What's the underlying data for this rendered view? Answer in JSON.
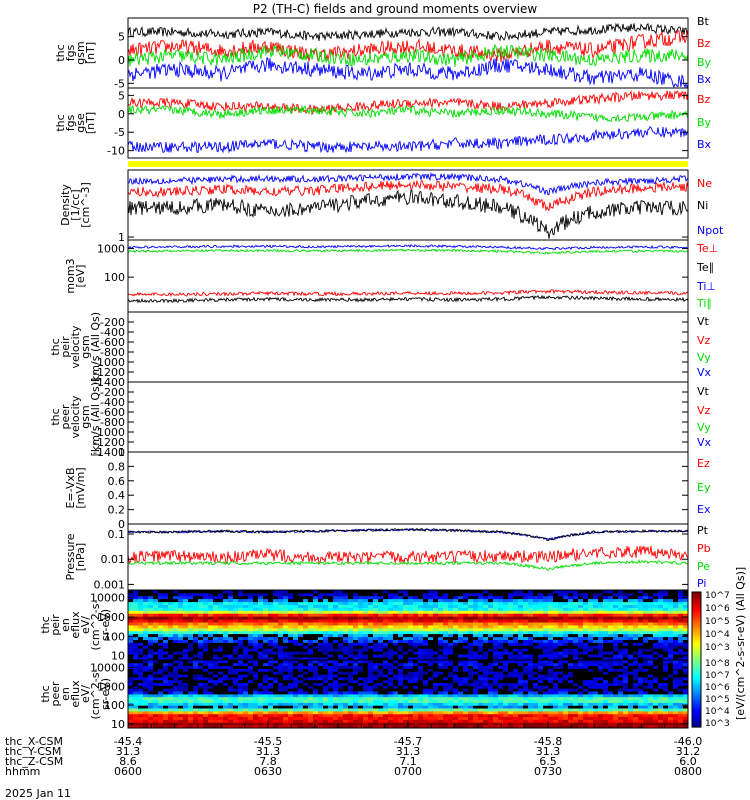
{
  "title": "P2 (TH-C) fields and ground moments overview",
  "date_label": "2025 Jan 11",
  "colors": {
    "black": "#000000",
    "red": "#ff0000",
    "green": "#00dd00",
    "blue": "#0000ff",
    "yellow": "#ffff00"
  },
  "chart_data": [
    {
      "type": "line",
      "id": "fgs_gsm",
      "ylabel": [
        "thc",
        "fgs",
        "gsm",
        "[nT]"
      ],
      "ylim": [
        -6,
        9
      ],
      "yticks": [
        -5,
        0,
        5
      ],
      "legend": [
        {
          "name": "Bt",
          "color": "black"
        },
        {
          "name": "Bz",
          "color": "red"
        },
        {
          "name": "By",
          "color": "green"
        },
        {
          "name": "Bx",
          "color": "blue"
        }
      ],
      "series": [
        {
          "name": "Bt",
          "color": "black",
          "base": [
            6,
            6,
            5.5,
            6,
            5,
            5.5,
            6,
            6,
            5,
            6,
            6.5,
            7,
            6
          ],
          "noise": 1
        },
        {
          "name": "Bz",
          "color": "red",
          "base": [
            2,
            3,
            2,
            3,
            1,
            2,
            3,
            2,
            1,
            3,
            2,
            4,
            5
          ],
          "noise": 1.6
        },
        {
          "name": "By",
          "color": "green",
          "base": [
            0,
            1,
            0,
            2,
            1,
            0,
            1,
            0,
            2,
            1,
            0,
            1,
            1
          ],
          "noise": 1.5
        },
        {
          "name": "Bx",
          "color": "blue",
          "base": [
            -3,
            -2,
            -3,
            -1,
            -2,
            -3,
            -2,
            -3,
            -1,
            -2,
            -4,
            -3,
            -5
          ],
          "noise": 1.6
        }
      ]
    },
    {
      "type": "line",
      "id": "fgs_gse",
      "ylabel": [
        "thc",
        "fgs",
        "gse",
        "[nT]"
      ],
      "ylim": [
        -12,
        7
      ],
      "yticks": [
        -10,
        -5,
        0,
        5
      ],
      "legend": [
        {
          "name": "Bz",
          "color": "red"
        },
        {
          "name": "By",
          "color": "green"
        },
        {
          "name": "Bx",
          "color": "blue"
        }
      ],
      "series": [
        {
          "name": "Bz",
          "color": "red",
          "base": [
            3,
            3,
            2,
            2,
            1,
            2,
            3,
            3,
            2,
            3,
            4,
            5,
            5
          ],
          "noise": 1.3
        },
        {
          "name": "By",
          "color": "green",
          "base": [
            1,
            1,
            0,
            1,
            1,
            0,
            1,
            0,
            1,
            0,
            -1,
            -1,
            0
          ],
          "noise": 1.2
        },
        {
          "name": "Bx",
          "color": "blue",
          "base": [
            -9,
            -9,
            -9,
            -8,
            -9,
            -9,
            -9,
            -8,
            -8,
            -7,
            -6,
            -5,
            -5
          ],
          "noise": 1.5
        }
      ]
    },
    {
      "type": "line",
      "id": "density",
      "ylabel": [
        "Density",
        "[1/cc]",
        "[cm^-3]"
      ],
      "ylim": [
        0.85,
        40
      ],
      "log": true,
      "yticks": [
        1
      ],
      "legend": [
        {
          "name": "Ne",
          "color": "red"
        },
        {
          "name": "Ni",
          "color": "black"
        },
        {
          "name": "Npot",
          "color": "blue"
        }
      ],
      "series": [
        {
          "name": "Npot",
          "color": "blue",
          "base": [
            22,
            22,
            24,
            25,
            24,
            26,
            28,
            27,
            24,
            12,
            20,
            22,
            25
          ],
          "noise": 0.08
        },
        {
          "name": "Ne",
          "color": "red",
          "base": [
            12,
            12,
            14,
            12,
            13,
            16,
            18,
            16,
            14,
            5,
            12,
            15,
            16
          ],
          "noise": 0.12
        },
        {
          "name": "Ni",
          "color": "black",
          "base": [
            5,
            5,
            6,
            4,
            5,
            7,
            9,
            7,
            5,
            1.2,
            4,
            5,
            5
          ],
          "noise": 0.18
        }
      ]
    },
    {
      "type": "line",
      "id": "temp",
      "ylabel": [
        "mom3",
        "[eV]"
      ],
      "ylim": [
        6,
        2000
      ],
      "log": true,
      "yticks": [
        100,
        1000
      ],
      "legend": [
        {
          "name": "Te⊥",
          "color": "red"
        },
        {
          "name": "Te∥",
          "color": "black"
        },
        {
          "name": "Ti⊥",
          "color": "blue"
        },
        {
          "name": "Ti∥",
          "color": "green"
        }
      ],
      "series": [
        {
          "name": "Ti⊥",
          "color": "blue",
          "base": [
            1100,
            1150,
            1200,
            1200,
            1150,
            1200,
            1250,
            1200,
            1100,
            1000,
            1100,
            1150,
            1100
          ],
          "noise": 0.04
        },
        {
          "name": "Ti∥",
          "color": "green",
          "base": [
            800,
            820,
            850,
            850,
            830,
            860,
            880,
            860,
            800,
            700,
            800,
            820,
            800
          ],
          "noise": 0.04
        },
        {
          "name": "Te⊥",
          "color": "red",
          "base": [
            25,
            25,
            26,
            27,
            26,
            26,
            28,
            27,
            28,
            32,
            30,
            28,
            27
          ],
          "noise": 0.06
        },
        {
          "name": "Te∥",
          "color": "black",
          "base": [
            15,
            15,
            16,
            17,
            16,
            16,
            17,
            16,
            17,
            20,
            18,
            17,
            16
          ],
          "noise": 0.06
        }
      ]
    },
    {
      "type": "line",
      "id": "peir_vel",
      "ylabel": [
        "thc",
        "peir",
        "velocity",
        "gsm",
        "km/s (All Qs)"
      ],
      "ylim": [
        -1400,
        0
      ],
      "yticks": [
        -200,
        -400,
        -600,
        -800,
        -1000,
        -1200,
        -1400
      ],
      "legend": [
        {
          "name": "Vt",
          "color": "black"
        },
        {
          "name": "Vz",
          "color": "red"
        },
        {
          "name": "Vy",
          "color": "green"
        },
        {
          "name": "Vx",
          "color": "blue"
        }
      ],
      "series": []
    },
    {
      "type": "line",
      "id": "peer_vel",
      "ylabel": [
        "thc",
        "peer",
        "velocity",
        "gsm",
        "[km/s (All Qs)]"
      ],
      "ylim": [
        -1400,
        0
      ],
      "yticks": [
        -200,
        -400,
        -600,
        -800,
        -1000,
        -1200,
        -1400
      ],
      "legend": [
        {
          "name": "Vt",
          "color": "black"
        },
        {
          "name": "Vz",
          "color": "red"
        },
        {
          "name": "Vy",
          "color": "green"
        },
        {
          "name": "Vx",
          "color": "blue"
        }
      ],
      "series": []
    },
    {
      "type": "line",
      "id": "efield",
      "ylabel": [
        "E=-VxB",
        "[mV/m]"
      ],
      "ylim": [
        0,
        1.0
      ],
      "yticks": [
        0.0,
        0.2,
        0.4,
        0.6,
        0.8,
        1.0
      ],
      "legend": [
        {
          "name": "Ez",
          "color": "red"
        },
        {
          "name": "Ey",
          "color": "green"
        },
        {
          "name": "Ex",
          "color": "blue"
        }
      ],
      "series": []
    },
    {
      "type": "line",
      "id": "pressure",
      "ylabel": [
        "Pressure",
        "[nPa]"
      ],
      "ylim": [
        0.0006,
        0.25
      ],
      "log": true,
      "yticks": [
        0.001,
        0.01,
        0.1
      ],
      "legend": [
        {
          "name": "Pt",
          "color": "black"
        },
        {
          "name": "Pb",
          "color": "red"
        },
        {
          "name": "Pe",
          "color": "green"
        },
        {
          "name": "Pi",
          "color": "blue"
        }
      ],
      "series": [
        {
          "name": "Pi",
          "color": "blue",
          "base": [
            0.12,
            0.12,
            0.13,
            0.12,
            0.13,
            0.14,
            0.15,
            0.14,
            0.12,
            0.06,
            0.12,
            0.13,
            0.13
          ],
          "noise": 0.04
        },
        {
          "name": "Pt",
          "color": "black",
          "base": [
            0.12,
            0.12,
            0.13,
            0.12,
            0.13,
            0.14,
            0.15,
            0.14,
            0.12,
            0.06,
            0.12,
            0.13,
            0.13
          ],
          "noise": 0.05
        },
        {
          "name": "Pb",
          "color": "red",
          "base": [
            0.012,
            0.014,
            0.011,
            0.015,
            0.012,
            0.011,
            0.013,
            0.012,
            0.014,
            0.012,
            0.018,
            0.02,
            0.015
          ],
          "noise": 0.25
        },
        {
          "name": "Pe",
          "color": "green",
          "base": [
            0.007,
            0.007,
            0.007,
            0.007,
            0.007,
            0.007,
            0.007,
            0.007,
            0.007,
            0.004,
            0.007,
            0.008,
            0.007
          ],
          "noise": 0.06
        }
      ]
    },
    {
      "type": "heatmap",
      "id": "peir_eflux",
      "ylabel": [
        "thc",
        "peir",
        "en",
        "eflux",
        "eV/",
        "(cm^2-s-",
        "sr-eV)"
      ],
      "ylim": [
        6,
        25000
      ],
      "log": true,
      "yticks": [
        10,
        100,
        1000,
        10000
      ],
      "bands": [
        [
          5000,
          0.35
        ],
        [
          1000,
          0.9
        ],
        [
          300,
          0.55
        ],
        [
          80,
          0.2
        ],
        [
          10,
          0.1
        ]
      ]
    },
    {
      "type": "heatmap",
      "id": "peer_eflux",
      "ylabel": [
        "thc",
        "peer",
        "en",
        "eflux",
        "eV/",
        "(cm^2-s-",
        "sr-eV)"
      ],
      "ylim": [
        6,
        25000
      ],
      "log": true,
      "yticks": [
        10,
        100,
        1000,
        10000
      ],
      "bands": [
        [
          15000,
          0.12
        ],
        [
          2000,
          0.1
        ],
        [
          200,
          0.45
        ],
        [
          30,
          0.8
        ],
        [
          8,
          0.95
        ]
      ]
    }
  ],
  "colorbar": {
    "label": "[eV/(cm^2-s-sr-eV) (All Qs)]",
    "ticks_top": [
      "10^7",
      "10^6",
      "10^5",
      "10^4",
      "10^3"
    ],
    "ticks_bottom": [
      "10^8",
      "10^7",
      "10^6",
      "10^5",
      "10^4",
      "10^3"
    ]
  },
  "x_axis": {
    "rows": [
      {
        "name": "thc_X-CSM",
        "values": [
          "-45.4",
          "-45.5",
          "-45.7",
          "-45.8",
          "-46.0"
        ]
      },
      {
        "name": "thc_Y-CSM",
        "values": [
          "31.3",
          "31.3",
          "31.3",
          "31.3",
          "31.2"
        ]
      },
      {
        "name": "thc_Z-CSM",
        "values": [
          "8.6",
          "7.8",
          "7.1",
          "6.5",
          "6.0"
        ]
      },
      {
        "name": "hhmm",
        "values": [
          "0600",
          "0630",
          "0700",
          "0730",
          "0800"
        ]
      }
    ]
  }
}
